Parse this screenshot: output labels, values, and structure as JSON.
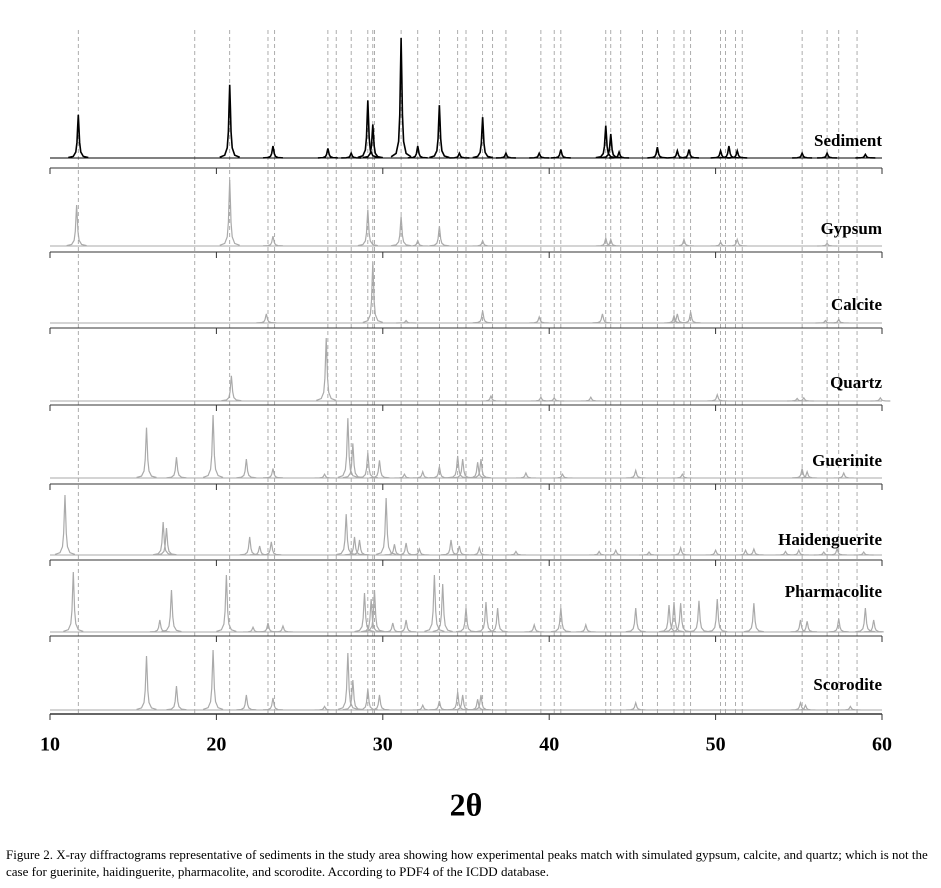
{
  "chart_data": {
    "type": "xrd",
    "xlabel": "2θ",
    "caption": "Figure 2. X-ray diffractograms representative of sediments in the study area showing how experimental peaks match with simulated gypsum, calcite, and quartz; which is not the case for guerinite, haidinguerite, pharmacolite, and scorodite. According to PDF4 of the ICDD database.",
    "xlim": [
      10,
      60
    ],
    "xticks": [
      10,
      20,
      30,
      40,
      50,
      60
    ],
    "reference_lines": [
      11.7,
      18.7,
      20.8,
      23.1,
      23.5,
      26.7,
      27.2,
      28.1,
      29.1,
      29.4,
      29.5,
      31.1,
      32.1,
      33.4,
      34.5,
      35.0,
      36.0,
      36.6,
      37.4,
      39.5,
      40.3,
      40.7,
      43.4,
      43.7,
      44.3,
      45.6,
      46.5,
      47.5,
      48.1,
      48.5,
      50.3,
      50.6,
      51.2,
      51.6,
      55.2,
      56.7,
      57.4,
      58.5
    ],
    "series": [
      {
        "name": "Sediment",
        "color": "#000000",
        "x": [
          11.7,
          20.8,
          23.4,
          26.7,
          28.1,
          29.1,
          29.4,
          31.1,
          32.1,
          33.4,
          34.6,
          36.0,
          37.4,
          39.4,
          40.7,
          43.4,
          43.7,
          44.2,
          46.5,
          47.7,
          48.4,
          50.3,
          50.8,
          51.3,
          55.2,
          56.7,
          59.0
        ],
        "values": [
          36,
          61,
          10,
          8,
          4,
          48,
          28,
          100,
          10,
          44,
          4,
          34,
          4,
          4,
          7,
          27,
          20,
          5,
          9,
          6,
          7,
          6,
          10,
          6,
          4,
          4,
          3
        ]
      },
      {
        "name": "Gypsum",
        "color": "#aaaaaa",
        "x": [
          11.6,
          20.8,
          23.4,
          29.1,
          31.1,
          32.1,
          33.4,
          36.0,
          43.4,
          43.7,
          48.1,
          50.3,
          51.3,
          56.7
        ],
        "values": [
          62,
          100,
          15,
          55,
          45,
          8,
          30,
          8,
          12,
          10,
          10,
          6,
          10,
          4
        ]
      },
      {
        "name": "Calcite",
        "color": "#aaaaaa",
        "x": [
          23.0,
          29.4,
          31.4,
          36.0,
          39.4,
          43.2,
          47.5,
          47.7,
          48.5,
          56.6,
          57.4
        ],
        "values": [
          15,
          100,
          4,
          20,
          10,
          15,
          12,
          15,
          18,
          4,
          6
        ]
      },
      {
        "name": "Quartz",
        "color": "#aaaaaa",
        "x": [
          20.9,
          26.6,
          36.5,
          39.5,
          40.3,
          42.5,
          50.1,
          54.9,
          55.3,
          59.9
        ],
        "values": [
          40,
          100,
          8,
          6,
          5,
          6,
          10,
          4,
          5,
          5
        ]
      },
      {
        "name": "Guerinite",
        "color": "#aaaaaa",
        "x": [
          15.8,
          17.6,
          19.8,
          21.8,
          23.4,
          26.5,
          27.9,
          28.2,
          29.1,
          29.8,
          31.3,
          32.4,
          33.4,
          34.5,
          34.8,
          35.7,
          35.9,
          38.6,
          40.8,
          45.2,
          48.0,
          55.2,
          55.5,
          57.7
        ],
        "values": [
          80,
          33,
          100,
          30,
          15,
          6,
          95,
          55,
          40,
          28,
          6,
          10,
          18,
          35,
          30,
          25,
          30,
          8,
          6,
          12,
          6,
          15,
          10,
          8
        ]
      },
      {
        "name": "Haidenguerite",
        "color": "#aaaaaa",
        "x": [
          10.9,
          16.8,
          17.0,
          22.0,
          22.6,
          23.3,
          27.8,
          28.3,
          28.6,
          30.2,
          30.7,
          31.4,
          32.2,
          34.1,
          34.6,
          35.8,
          38.0,
          43.0,
          44.0,
          46.0,
          47.9,
          50.0,
          51.8,
          52.3,
          54.2,
          55.0,
          56.5,
          57.3,
          58.9
        ],
        "values": [
          100,
          55,
          45,
          30,
          15,
          22,
          68,
          30,
          25,
          95,
          18,
          20,
          10,
          25,
          15,
          12,
          6,
          6,
          8,
          5,
          12,
          8,
          8,
          10,
          6,
          8,
          5,
          10,
          5
        ]
      },
      {
        "name": "Pharmacolite",
        "color": "#aaaaaa",
        "x": [
          11.4,
          16.6,
          17.3,
          20.6,
          22.2,
          23.1,
          24.0,
          28.9,
          29.3,
          29.5,
          30.6,
          31.4,
          33.1,
          33.6,
          35.0,
          36.2,
          36.9,
          39.1,
          40.7,
          42.2,
          45.2,
          47.2,
          47.5,
          47.9,
          49.0,
          50.1,
          52.3,
          55.1,
          55.5,
          57.4,
          59.0,
          59.5
        ],
        "values": [
          100,
          20,
          70,
          95,
          8,
          15,
          10,
          65,
          55,
          70,
          15,
          20,
          95,
          80,
          40,
          50,
          40,
          12,
          40,
          12,
          40,
          45,
          50,
          48,
          52,
          55,
          48,
          20,
          18,
          22,
          40,
          20
        ]
      },
      {
        "name": "Scorodite",
        "color": "#aaaaaa",
        "x": [
          15.8,
          17.6,
          19.8,
          21.8,
          23.4,
          26.5,
          27.9,
          28.2,
          29.1,
          29.8,
          32.4,
          33.4,
          34.5,
          34.8,
          35.7,
          35.9,
          45.2,
          55.1,
          55.4,
          58.1
        ],
        "values": [
          90,
          40,
          100,
          25,
          20,
          6,
          95,
          50,
          35,
          25,
          8,
          15,
          30,
          25,
          18,
          25,
          12,
          12,
          8,
          6
        ]
      }
    ]
  }
}
